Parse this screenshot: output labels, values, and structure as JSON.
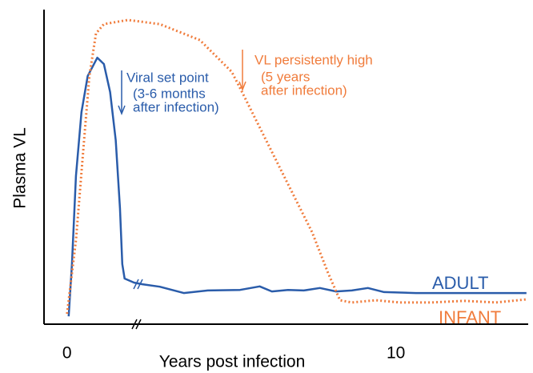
{
  "chart_data": {
    "type": "line",
    "xlabel": "Years post infection",
    "ylabel": "Plasma VL",
    "xlim": [
      -0.7,
      14.0
    ],
    "ylim": [
      0,
      100
    ],
    "xticks": [
      0,
      10
    ],
    "series": [
      {
        "name": "ADULT",
        "color": "#2a5caa",
        "style": "solid",
        "x": [
          0.05,
          0.15,
          0.27,
          0.44,
          0.63,
          0.92,
          1.12,
          1.31,
          1.48,
          1.61,
          1.68,
          1.75,
          2.04,
          2.29,
          2.82,
          3.55,
          4.28,
          5.26,
          5.86,
          6.23,
          6.72,
          7.2,
          7.69,
          8.18,
          8.66,
          9.15,
          9.64,
          10.61,
          13.97
        ],
        "values": [
          2.5,
          19.1,
          47.1,
          67.4,
          78.9,
          84.7,
          82.7,
          73.8,
          58.5,
          36.9,
          19.1,
          14.5,
          13.2,
          12.7,
          11.9,
          9.9,
          10.7,
          10.9,
          12.0,
          10.4,
          10.9,
          10.7,
          11.5,
          10.4,
          10.7,
          11.5,
          10.2,
          9.9,
          9.9
        ]
      },
      {
        "name": "INFANT",
        "color": "#f07c3c",
        "style": "dotted",
        "x": [
          0,
          0.27,
          0.51,
          0.68,
          0.88,
          1.12,
          1.85,
          2.82,
          4.04,
          5.01,
          5.26,
          5.99,
          6.72,
          7.45,
          7.93,
          8.3,
          8.66,
          9.39,
          10.12,
          11.09,
          12.07,
          13.04,
          13.97
        ],
        "values": [
          3.3,
          26.7,
          57.3,
          78.9,
          92.4,
          95.4,
          96.7,
          95.4,
          90.3,
          80.2,
          75.1,
          59.8,
          44.5,
          29.3,
          16.5,
          7.6,
          6.9,
          7.6,
          6.9,
          6.9,
          7.4,
          6.9,
          7.9
        ]
      }
    ],
    "annotations": [
      {
        "lines": [
          "Viral set point",
          "(3-6 months",
          "after infection)"
        ],
        "color": "#2a5caa"
      },
      {
        "lines": [
          "VL persistently high",
          "(5 years",
          "after infection)"
        ],
        "color": "#f07c3c"
      }
    ]
  }
}
